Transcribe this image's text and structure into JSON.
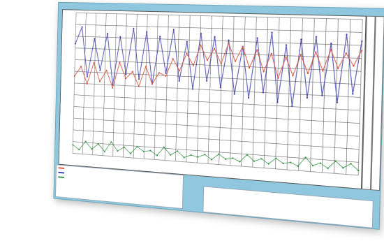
{
  "window": {
    "colors": {
      "frame": "#8fc8de",
      "plot_bg": "#ffffff",
      "series_blue": "#3c3ca8",
      "series_red": "#d8503a",
      "series_green": "#2f8f3c"
    }
  },
  "chart_data": {
    "type": "line",
    "title": "",
    "grid": true,
    "legend_placement": "bottom-left",
    "series": [
      {
        "color": "#3c3ca8",
        "values": [
          0.78,
          0.9,
          0.55,
          0.82,
          0.6,
          0.86,
          0.5,
          0.84,
          0.58,
          0.9,
          0.55,
          0.88,
          0.52,
          0.85,
          0.6,
          0.9,
          0.55,
          0.82,
          0.5,
          0.88,
          0.56,
          0.86,
          0.52,
          0.84,
          0.48,
          0.8,
          0.46,
          0.86,
          0.5,
          0.9,
          0.44,
          0.82,
          0.42,
          0.86,
          0.48,
          0.88,
          0.5,
          0.84,
          0.46,
          0.9,
          0.52,
          0.86
        ]
      },
      {
        "color": "#d8503a",
        "values": [
          0.55,
          0.62,
          0.5,
          0.65,
          0.52,
          0.6,
          0.48,
          0.66,
          0.55,
          0.6,
          0.5,
          0.64,
          0.52,
          0.6,
          0.58,
          0.7,
          0.62,
          0.74,
          0.66,
          0.8,
          0.7,
          0.78,
          0.68,
          0.82,
          0.7,
          0.8,
          0.66,
          0.78,
          0.64,
          0.76,
          0.6,
          0.74,
          0.62,
          0.76,
          0.64,
          0.78,
          0.66,
          0.8,
          0.68,
          0.78,
          0.7,
          0.8
        ]
      },
      {
        "color": "#2f8f3c",
        "values": [
          0.06,
          0.03,
          0.09,
          0.04,
          0.08,
          0.03,
          0.1,
          0.04,
          0.07,
          0.03,
          0.08,
          0.05,
          0.06,
          0.03,
          0.09,
          0.04,
          0.07,
          0.03,
          0.05,
          0.04,
          0.06,
          0.03,
          0.07,
          0.04,
          0.05,
          0.03,
          0.08,
          0.04,
          0.06,
          0.03,
          0.07,
          0.04,
          0.05,
          0.03,
          0.09,
          0.04,
          0.06,
          0.03,
          0.08,
          0.04,
          0.07,
          0.03
        ]
      }
    ]
  },
  "stats": {
    "header": [
      "",
      "",
      "",
      "",
      "",
      "",
      ""
    ],
    "rows": [
      [
        "",
        "",
        "",
        "",
        "",
        "",
        ""
      ],
      [
        "",
        "",
        "",
        "",
        "",
        "",
        ""
      ],
      [
        "",
        "",
        "",
        "",
        "",
        "",
        ""
      ]
    ]
  }
}
